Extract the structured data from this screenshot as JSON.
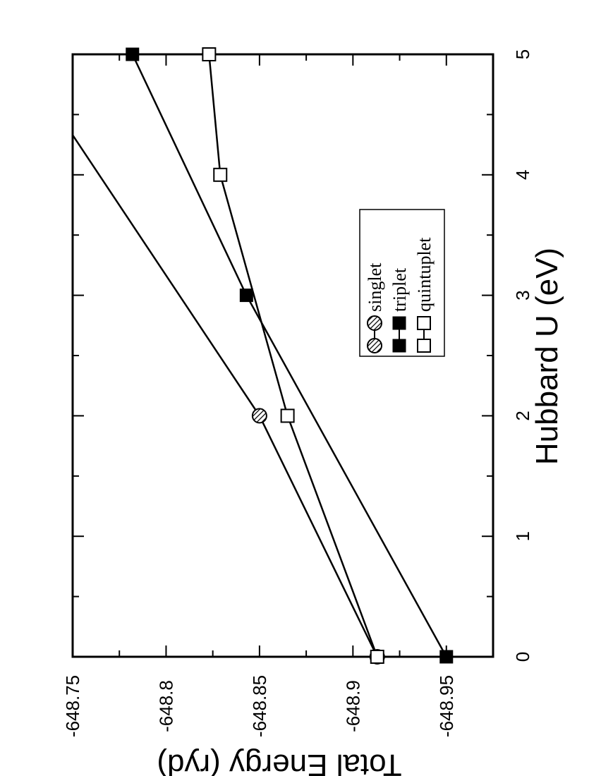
{
  "chart_data": {
    "type": "line",
    "xlabel": "Hubbard U (eV)",
    "ylabel": "Total Energy (ryd)",
    "xlim": [
      0,
      5
    ],
    "ylim": [
      -648.975,
      -648.75
    ],
    "x_ticks": [
      "0",
      "1",
      "2",
      "3",
      "4",
      "5"
    ],
    "y_ticks": [
      "-648.75",
      "-648.8",
      "-648.85",
      "-648.9",
      "-648.95"
    ],
    "rotation": "figure rotated 90 degrees counter-clockwise (x axis vertical, increasing upward)",
    "legend_position": "center-right",
    "series": [
      {
        "name": "singlet",
        "marker": "hatched-circle",
        "x": [
          0,
          2,
          4.33
        ],
        "y": [
          -648.913,
          -648.85,
          -648.75
        ]
      },
      {
        "name": "triplet",
        "marker": "filled-square",
        "x": [
          0,
          3,
          5
        ],
        "y": [
          -648.95,
          -648.843,
          -648.782
        ]
      },
      {
        "name": "quintuplet",
        "marker": "open-square",
        "x": [
          0,
          2,
          4,
          5
        ],
        "y": [
          -648.913,
          -648.865,
          -648.829,
          -648.823
        ]
      }
    ],
    "marker_points": {
      "singlet": [
        0,
        2
      ],
      "triplet": [
        0,
        3,
        5
      ],
      "quintuplet": [
        0,
        2,
        4,
        5
      ]
    }
  }
}
